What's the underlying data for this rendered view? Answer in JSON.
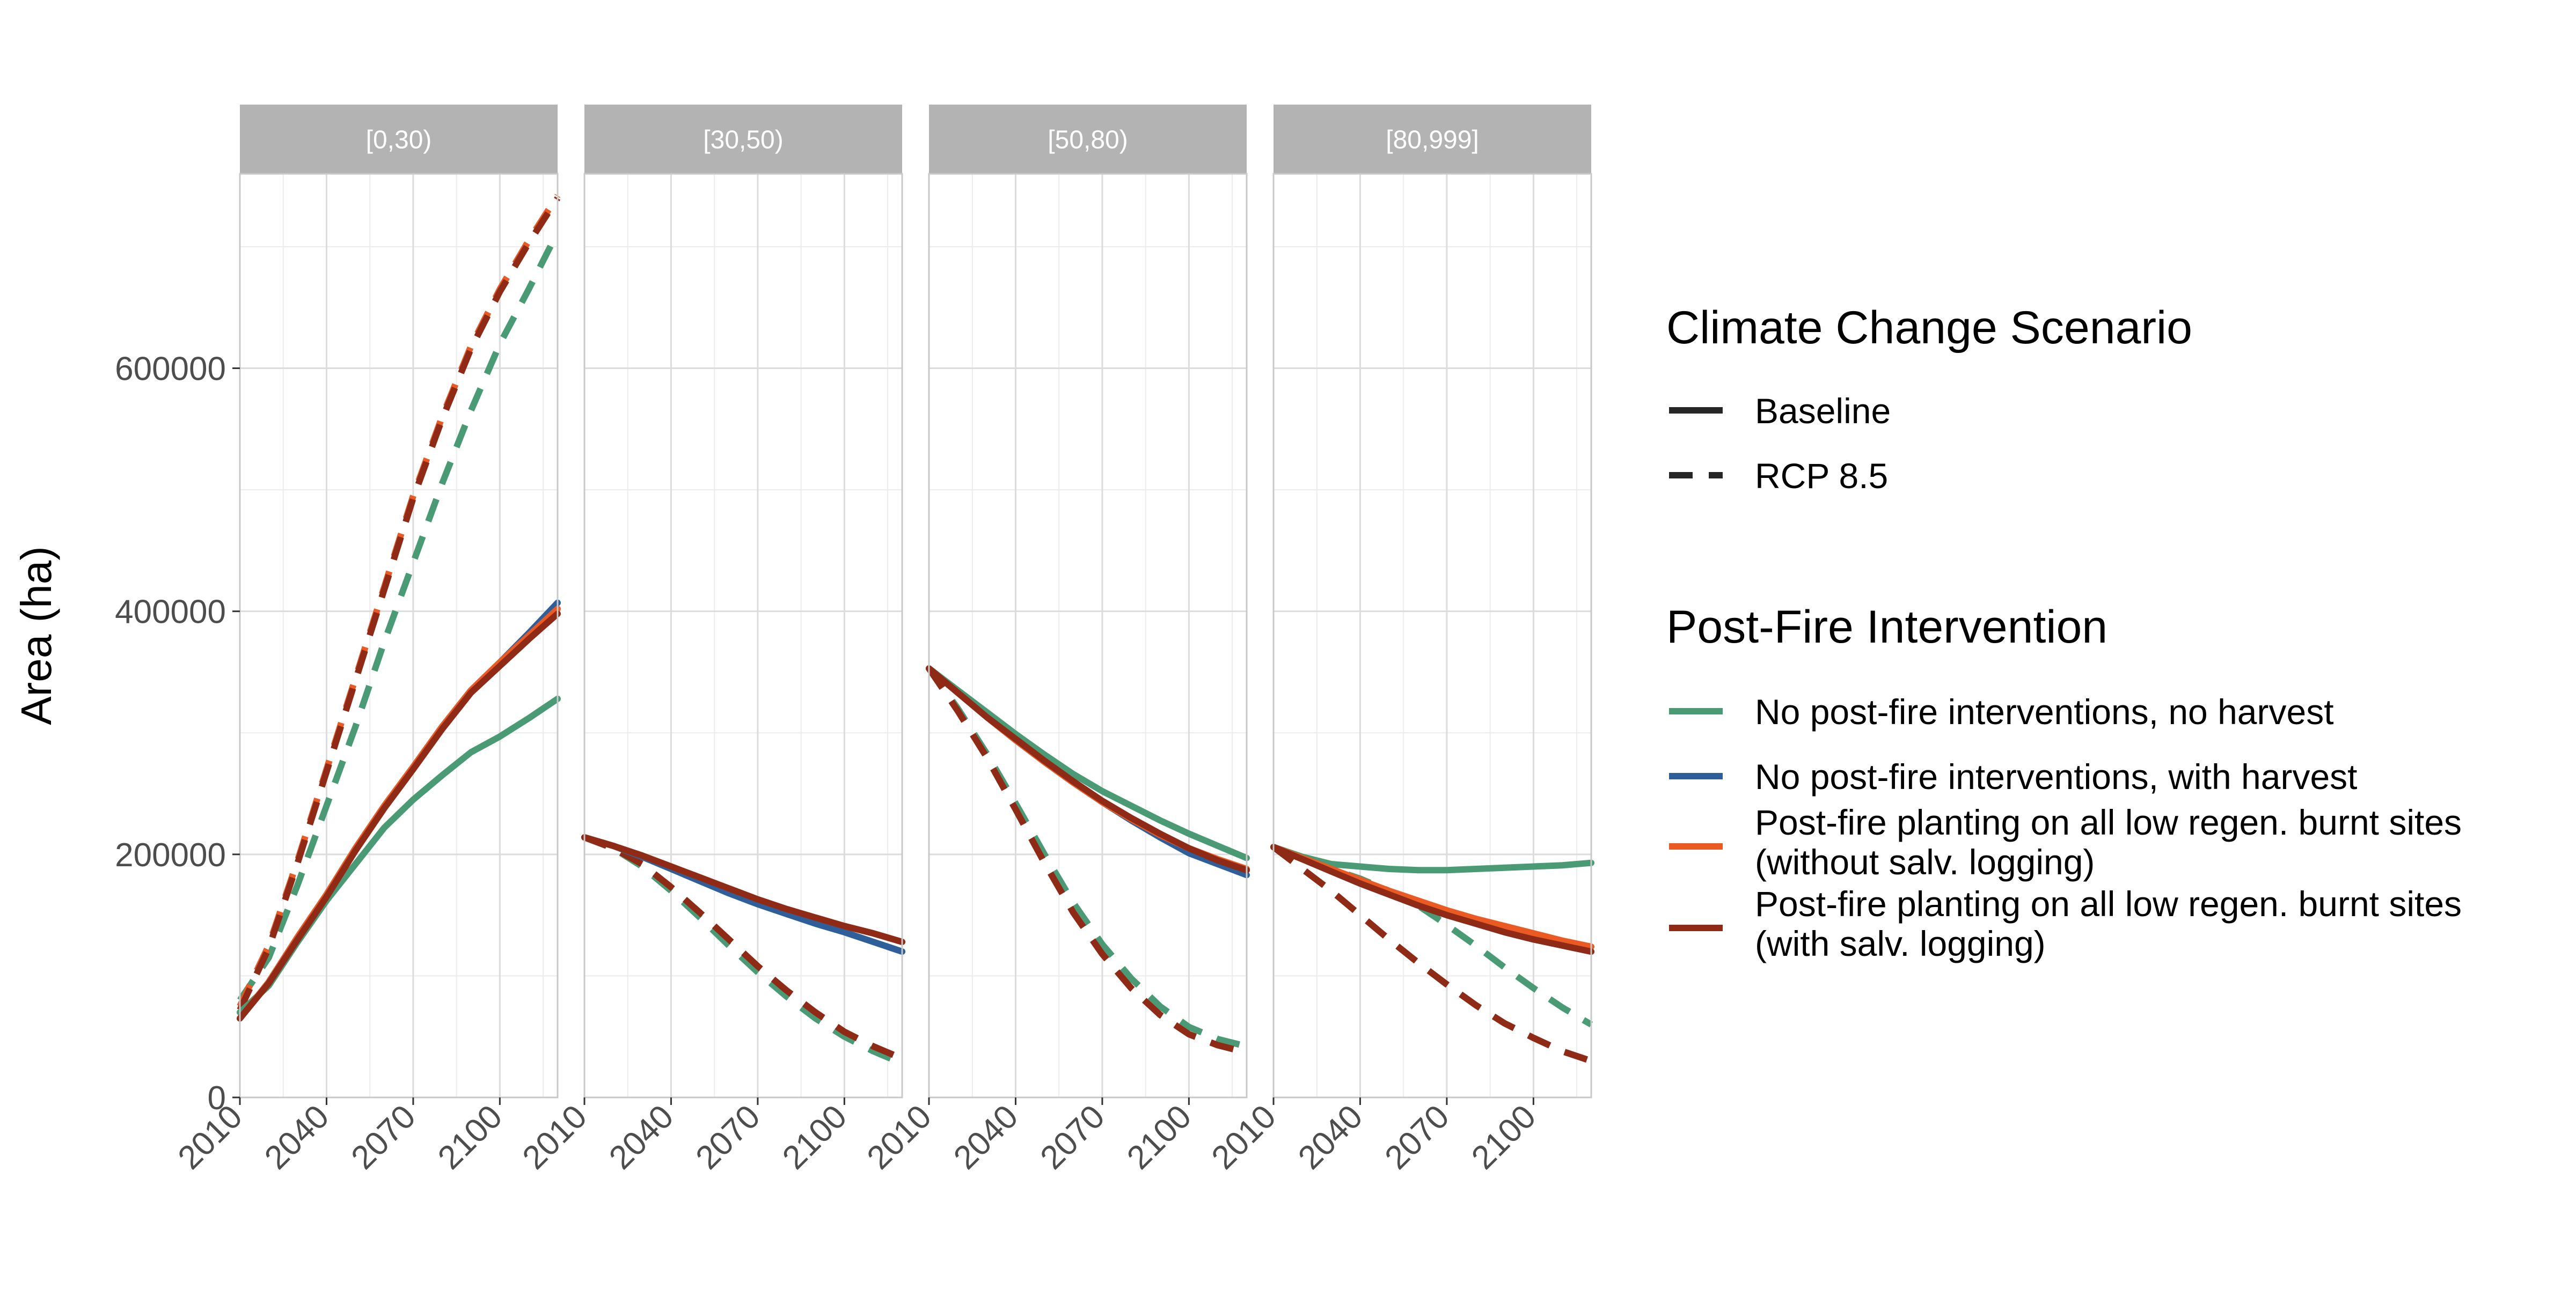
{
  "chart_data": {
    "type": "line",
    "ylabel": "Area (ha)",
    "xlabel": "",
    "xlim": [
      2010,
      2120
    ],
    "ylim": [
      0,
      760000
    ],
    "x_ticks": [
      2010,
      2040,
      2070,
      2100
    ],
    "x_tick_labels": [
      "2010",
      "2040",
      "2070",
      "2100"
    ],
    "y_ticks": [
      0,
      200000,
      400000,
      600000
    ],
    "y_tick_labels": [
      "0",
      "200000",
      "400000",
      "600000"
    ],
    "grid": true,
    "legend_position": "right",
    "x": [
      2010,
      2020,
      2030,
      2040,
      2050,
      2060,
      2070,
      2080,
      2090,
      2100,
      2110,
      2120
    ],
    "panels": [
      {
        "label": "[0,30)",
        "series": [
          {
            "intervention": "No post-fire interventions, no harvest",
            "scenario": "Baseline",
            "values": [
              70000,
              92000,
              128000,
              162000,
              192000,
              222000,
              245000,
              265000,
              284000,
              297000,
              312000,
              328000
            ]
          },
          {
            "intervention": "No post-fire interventions, with harvest",
            "scenario": "Baseline",
            "values": [
              65000,
              95000,
              132000,
              167000,
              205000,
              240000,
              272000,
              305000,
              335000,
              358000,
              382000,
              407000
            ]
          },
          {
            "intervention": "Post-fire planting on all low regen. burnt sites (without salv. logging)",
            "scenario": "Baseline",
            "values": [
              65000,
              95000,
              132000,
              167000,
              205000,
              240000,
              272000,
              305000,
              335000,
              358000,
              380000,
              402000
            ]
          },
          {
            "intervention": "Post-fire planting on all low regen. burnt sites (with salv. logging)",
            "scenario": "Baseline",
            "values": [
              65000,
              94000,
              130000,
              165000,
              203000,
              238000,
              270000,
              303000,
              333000,
              355000,
              377000,
              398000
            ]
          },
          {
            "intervention": "No post-fire interventions, no harvest",
            "scenario": "RCP 8.5",
            "values": [
              80000,
              115000,
              175000,
              240000,
              305000,
              375000,
              440000,
              505000,
              565000,
              620000,
              665000,
              712000
            ]
          },
          {
            "intervention": "No post-fire interventions, with harvest",
            "scenario": "RCP 8.5",
            "values": [
              75000,
              125000,
              195000,
              270000,
              345000,
              420000,
              495000,
              560000,
              618000,
              665000,
              705000,
              742000
            ]
          },
          {
            "intervention": "Post-fire planting on all low regen. burnt sites (without salv. logging)",
            "scenario": "RCP 8.5",
            "values": [
              75000,
              125000,
              195000,
              270000,
              345000,
              420000,
              495000,
              560000,
              618000,
              665000,
              705000,
              742000
            ]
          },
          {
            "intervention": "Post-fire planting on all low regen. burnt sites (with salv. logging)",
            "scenario": "RCP 8.5",
            "values": [
              72000,
              123000,
              193000,
              268000,
              343000,
              418000,
              493000,
              558000,
              616000,
              663000,
              703000,
              740000
            ]
          }
        ]
      },
      {
        "label": "[30,50)",
        "series": [
          {
            "intervention": "No post-fire interventions, no harvest",
            "scenario": "Baseline",
            "values": [
              214000,
              207000,
              198000,
              188000,
              178000,
              168000,
              159000,
              151000,
              143000,
              136000,
              128000,
              120000
            ]
          },
          {
            "intervention": "No post-fire interventions, with harvest",
            "scenario": "Baseline",
            "values": [
              214000,
              207000,
              198000,
              188000,
              178000,
              168000,
              159000,
              151000,
              143000,
              136000,
              128000,
              120000
            ]
          },
          {
            "intervention": "Post-fire planting on all low regen. burnt sites (without salv. logging)",
            "scenario": "Baseline",
            "values": [
              214000,
              207000,
              199000,
              190000,
              181000,
              172000,
              163000,
              155000,
              148000,
              141000,
              135000,
              128000
            ]
          },
          {
            "intervention": "Post-fire planting on all low regen. burnt sites (with salv. logging)",
            "scenario": "Baseline",
            "values": [
              214000,
              207000,
              199000,
              190000,
              181000,
              172000,
              163000,
              155000,
              148000,
              141000,
              135000,
              128000
            ]
          },
          {
            "intervention": "No post-fire interventions, no harvest",
            "scenario": "RCP 8.5",
            "values": [
              214000,
              205000,
              190000,
              170000,
              148000,
              125000,
              103000,
              83000,
              65000,
              50000,
              38000,
              28000
            ]
          },
          {
            "intervention": "No post-fire interventions, with harvest",
            "scenario": "RCP 8.5",
            "values": [
              214000,
              205000,
              192000,
              173000,
              152000,
              130000,
              108000,
              88000,
              70000,
              54000,
              42000,
              32000
            ]
          },
          {
            "intervention": "Post-fire planting on all low regen. burnt sites (without salv. logging)",
            "scenario": "RCP 8.5",
            "values": [
              214000,
              205000,
              192000,
              173000,
              152000,
              130000,
              108000,
              88000,
              70000,
              54000,
              42000,
              32000
            ]
          },
          {
            "intervention": "Post-fire planting on all low regen. burnt sites (with salv. logging)",
            "scenario": "RCP 8.5",
            "values": [
              214000,
              205000,
              192000,
              173000,
              152000,
              130000,
              108000,
              88000,
              70000,
              54000,
              42000,
              32000
            ]
          }
        ]
      },
      {
        "label": "[50,80)",
        "series": [
          {
            "intervention": "No post-fire interventions, no harvest",
            "scenario": "Baseline",
            "values": [
              353000,
              335000,
              317000,
              299000,
              282000,
              266000,
              252000,
              240000,
              228000,
              217000,
              207000,
              197000
            ]
          },
          {
            "intervention": "No post-fire interventions, with harvest",
            "scenario": "Baseline",
            "values": [
              353000,
              333000,
              313000,
              294000,
              276000,
              259000,
              243000,
              228000,
              214000,
              201000,
              192000,
              183000
            ]
          },
          {
            "intervention": "Post-fire planting on all low regen. burnt sites (without salv. logging)",
            "scenario": "Baseline",
            "values": [
              353000,
              333000,
              313000,
              294000,
              276000,
              259000,
              243000,
              229000,
              216000,
              205000,
              196000,
              188000
            ]
          },
          {
            "intervention": "Post-fire planting on all low regen. burnt sites (with salv. logging)",
            "scenario": "Baseline",
            "values": [
              353000,
              333000,
              313000,
              295000,
              277000,
              260000,
              244000,
              230000,
              217000,
              205000,
              195000,
              187000
            ]
          },
          {
            "intervention": "No post-fire interventions, no harvest",
            "scenario": "RCP 8.5",
            "values": [
              353000,
              320000,
              283000,
              242000,
              200000,
              160000,
              126000,
              98000,
              75000,
              58000,
              48000,
              42000
            ]
          },
          {
            "intervention": "No post-fire interventions, with harvest",
            "scenario": "RCP 8.5",
            "values": [
              353000,
              318000,
              280000,
              237000,
              193000,
              152000,
              118000,
              90000,
              68000,
              52000,
              43000,
              37000
            ]
          },
          {
            "intervention": "Post-fire planting on all low regen. burnt sites (without salv. logging)",
            "scenario": "RCP 8.5",
            "values": [
              353000,
              318000,
              280000,
              237000,
              193000,
              152000,
              118000,
              90000,
              68000,
              52000,
              43000,
              37000
            ]
          },
          {
            "intervention": "Post-fire planting on all low regen. burnt sites (with salv. logging)",
            "scenario": "RCP 8.5",
            "values": [
              353000,
              318000,
              280000,
              237000,
              193000,
              152000,
              118000,
              90000,
              68000,
              52000,
              43000,
              37000
            ]
          }
        ]
      },
      {
        "label": "[80,999]",
        "series": [
          {
            "intervention": "No post-fire interventions, no harvest",
            "scenario": "Baseline",
            "values": [
              206000,
              198000,
              192000,
              190000,
              188000,
              187000,
              187000,
              188000,
              189000,
              190000,
              191000,
              193000
            ]
          },
          {
            "intervention": "No post-fire interventions, with harvest",
            "scenario": "Baseline",
            "values": [
              206000,
              196000,
              186000,
              176000,
              167000,
              158000,
              150000,
              143000,
              136000,
              130000,
              125000,
              120000
            ]
          },
          {
            "intervention": "Post-fire planting on all low regen. burnt sites (without salv. logging)",
            "scenario": "Baseline",
            "values": [
              206000,
              197000,
              188000,
              179000,
              170000,
              162000,
              154000,
              147000,
              141000,
              135000,
              129000,
              124000
            ]
          },
          {
            "intervention": "Post-fire planting on all low regen. burnt sites (with salv. logging)",
            "scenario": "Baseline",
            "values": [
              206000,
              196000,
              186000,
              176000,
              167000,
              158000,
              150000,
              143000,
              136000,
              130000,
              125000,
              120000
            ]
          },
          {
            "intervention": "No post-fire interventions, no harvest",
            "scenario": "RCP 8.5",
            "values": [
              206000,
              196000,
              188000,
              180000,
              170000,
              158000,
              142000,
              125000,
              107000,
              90000,
              74000,
              60000
            ]
          },
          {
            "intervention": "No post-fire interventions, with harvest",
            "scenario": "RCP 8.5",
            "values": [
              206000,
              188000,
              170000,
              150000,
              130000,
              111000,
              93000,
              76000,
              61000,
              49000,
              38000,
              30000
            ]
          },
          {
            "intervention": "Post-fire planting on all low regen. burnt sites (without salv. logging)",
            "scenario": "RCP 8.5",
            "values": [
              206000,
              188000,
              170000,
              150000,
              130000,
              111000,
              93000,
              76000,
              61000,
              49000,
              38000,
              30000
            ]
          },
          {
            "intervention": "Post-fire planting on all low regen. burnt sites (with salv. logging)",
            "scenario": "RCP 8.5",
            "values": [
              206000,
              188000,
              170000,
              150000,
              130000,
              111000,
              93000,
              76000,
              61000,
              49000,
              38000,
              30000
            ]
          }
        ]
      }
    ],
    "legend": {
      "scenario_title": "Climate Change Scenario",
      "scenarios": [
        {
          "label": "Baseline",
          "dash": "solid"
        },
        {
          "label": "RCP 8.5",
          "dash": "dashed"
        }
      ],
      "intervention_title": "Post-Fire Intervention",
      "interventions": [
        {
          "key": "No post-fire interventions, no harvest",
          "lines": [
            "No post-fire interventions, no harvest"
          ],
          "color": "#4a9b75"
        },
        {
          "key": "No post-fire interventions, with harvest",
          "lines": [
            "No post-fire interventions, with harvest"
          ],
          "color": "#2e5f9a"
        },
        {
          "key": "Post-fire planting on all low regen. burnt sites (without salv. logging)",
          "lines": [
            "Post-fire planting on all low regen. burnt sites",
            "(without salv. logging)"
          ],
          "color": "#ec5a24"
        },
        {
          "key": "Post-fire planting on all low regen. burnt sites (with salv. logging)",
          "lines": [
            "Post-fire planting on all low regen. burnt sites",
            "(with salv. logging)"
          ],
          "color": "#8e2a15"
        }
      ]
    }
  }
}
